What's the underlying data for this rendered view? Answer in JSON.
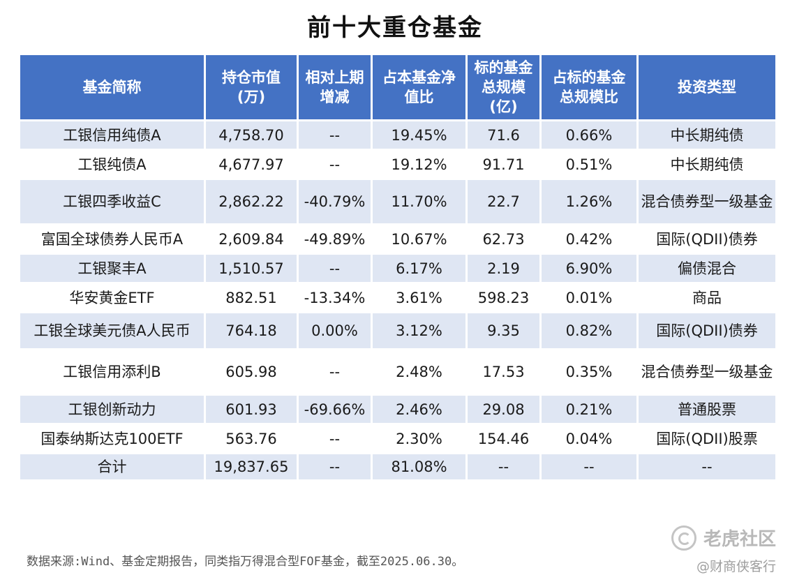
{
  "title": "前十大重仓基金",
  "headers": [
    "基金简称",
    "持仓市值\n(万)",
    "相对上期\n增减",
    "占本基金净\n值比",
    "标的基金\n总规模\n(亿)",
    "占标的基金\n总规模比",
    "投资类型"
  ],
  "rows": [
    {
      "name": "工银信用纯债A",
      "value": "4,758.70",
      "change": "--",
      "nav_ratio": "19.45%",
      "total_size": "71.6",
      "size_ratio": "0.66%",
      "type": "中长期纯债"
    },
    {
      "name": "工银纯债A",
      "value": "4,677.97",
      "change": "--",
      "nav_ratio": "19.12%",
      "total_size": "91.71",
      "size_ratio": "0.51%",
      "type": "中长期纯债"
    },
    {
      "name": "工银四季收益C",
      "value": "2,862.22",
      "change": "-40.79%",
      "nav_ratio": "11.70%",
      "total_size": "22.7",
      "size_ratio": "1.26%",
      "type": "混合债券型一级基金"
    },
    {
      "name": "富国全球债券人民币A",
      "value": "2,609.84",
      "change": "-49.89%",
      "nav_ratio": "10.67%",
      "total_size": "62.73",
      "size_ratio": "0.42%",
      "type": "国际(QDII)债券"
    },
    {
      "name": "工银聚丰A",
      "value": "1,510.57",
      "change": "--",
      "nav_ratio": "6.17%",
      "total_size": "2.19",
      "size_ratio": "6.90%",
      "type": "偏债混合"
    },
    {
      "name": "华安黄金ETF",
      "value": "882.51",
      "change": "-13.34%",
      "nav_ratio": "3.61%",
      "total_size": "598.23",
      "size_ratio": "0.01%",
      "type": "商品"
    },
    {
      "name": "工银全球美元债A人民币",
      "value": "764.18",
      "change": "0.00%",
      "nav_ratio": "3.12%",
      "total_size": "9.35",
      "size_ratio": "0.82%",
      "type": "国际(QDII)债券"
    },
    {
      "name": "工银信用添利B",
      "value": "605.98",
      "change": "--",
      "nav_ratio": "2.48%",
      "total_size": "17.53",
      "size_ratio": "0.35%",
      "type": "混合债券型一级基金"
    },
    {
      "name": "工银创新动力",
      "value": "601.93",
      "change": "-69.66%",
      "nav_ratio": "2.46%",
      "total_size": "29.08",
      "size_ratio": "0.21%",
      "type": "普通股票"
    },
    {
      "name": "国泰纳斯达克100ETF",
      "value": "563.76",
      "change": "--",
      "nav_ratio": "2.30%",
      "total_size": "154.46",
      "size_ratio": "0.04%",
      "type": "国际(QDII)股票"
    },
    {
      "name": "合计",
      "value": "19,837.65",
      "change": "--",
      "nav_ratio": "81.08%",
      "total_size": "--",
      "size_ratio": "--",
      "type": "--"
    }
  ],
  "source": "数据来源:Wind、基金定期报告，同类指万得混合型FOF基金，截至2025.06.30。",
  "watermark": "老虎社区",
  "author_handle": "@财商侠客行"
}
